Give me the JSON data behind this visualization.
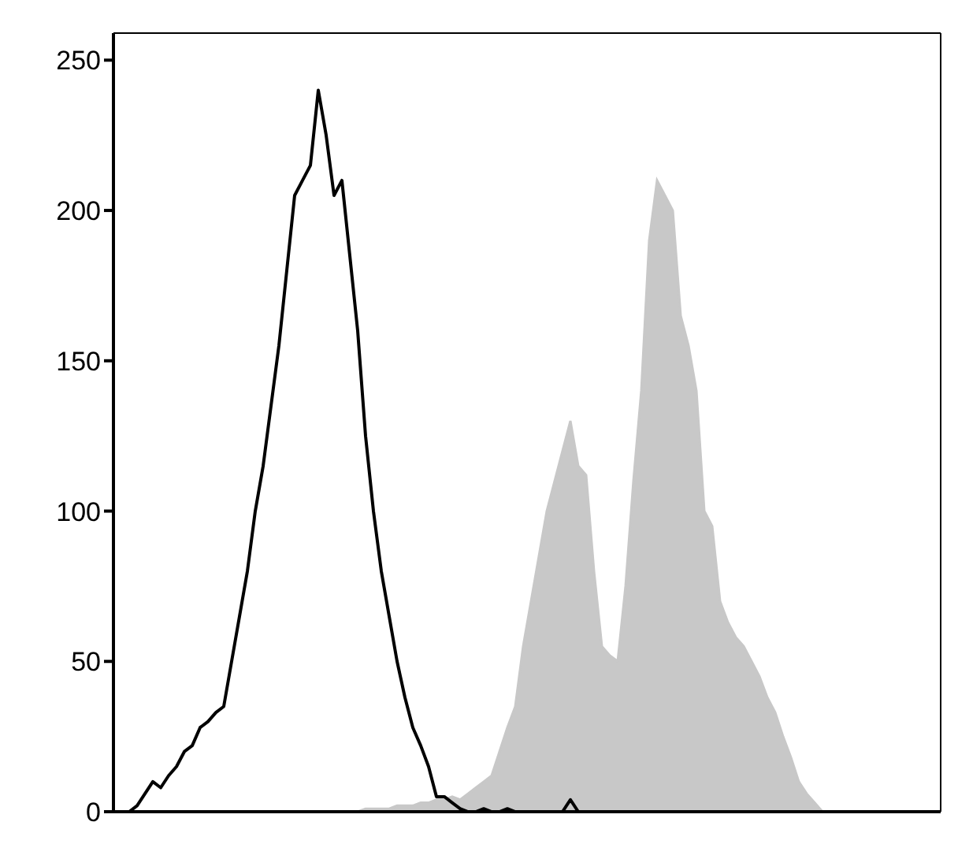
{
  "chart_data": {
    "type": "area",
    "categories": [
      null,
      null,
      null,
      null,
      null,
      null,
      null,
      null,
      null,
      null,
      null,
      null,
      null,
      null,
      null,
      null,
      null,
      null,
      null,
      null,
      null,
      null,
      null,
      null,
      null,
      null,
      null,
      null,
      null,
      null,
      null,
      null,
      null,
      null,
      null,
      null,
      null,
      null,
      null,
      null,
      null,
      null,
      null,
      null,
      null,
      null,
      null,
      null,
      null,
      null,
      null,
      null,
      null,
      null,
      null,
      null,
      null,
      null,
      null,
      null,
      null,
      null,
      null,
      null,
      null,
      null,
      null,
      null,
      null,
      null,
      null,
      null,
      null,
      null,
      null,
      null,
      null,
      null,
      null,
      null,
      null,
      null,
      null,
      null,
      null,
      null,
      null,
      null,
      null,
      null,
      null,
      null,
      null,
      null,
      null,
      null,
      null,
      null,
      null,
      null,
      null,
      null,
      null,
      null,
      null,
      null
    ],
    "series": [
      {
        "color": "#c8c8c8",
        "values": [
          0,
          0,
          0,
          0,
          0,
          0,
          0,
          0,
          0,
          0,
          0,
          0,
          0,
          0,
          0,
          0,
          0,
          0,
          0,
          0,
          0,
          0,
          0,
          0,
          0,
          0,
          0,
          0,
          0,
          0,
          0,
          0,
          1,
          1,
          1,
          1,
          2,
          2,
          2,
          3,
          3,
          4,
          4,
          5,
          4,
          6,
          8,
          10,
          12,
          20,
          28,
          35,
          55,
          70,
          85,
          100,
          110,
          120,
          130,
          115,
          112,
          80,
          55,
          52,
          50,
          75,
          110,
          140,
          190,
          210,
          205,
          200,
          165,
          155,
          140,
          100,
          95,
          70,
          63,
          58,
          55,
          50,
          45,
          38,
          33,
          25,
          18,
          10,
          6,
          3,
          0,
          0,
          0,
          0,
          0,
          0,
          0,
          0,
          0,
          0,
          0,
          0,
          0,
          0,
          0,
          0
        ]
      },
      {
        "type": "line",
        "color": "#000000",
        "values": [
          0,
          0,
          0,
          2,
          6,
          10,
          8,
          12,
          15,
          20,
          22,
          28,
          30,
          33,
          35,
          50,
          65,
          80,
          100,
          115,
          135,
          155,
          180,
          205,
          210,
          215,
          240,
          225,
          205,
          210,
          185,
          160,
          125,
          100,
          80,
          65,
          50,
          38,
          28,
          22,
          15,
          5,
          5,
          3,
          1,
          0,
          0,
          1,
          0,
          0,
          1,
          0,
          0,
          0,
          0,
          0,
          0,
          0,
          4,
          0,
          0,
          0,
          0,
          0,
          0,
          0,
          0,
          0,
          0,
          0,
          0,
          0,
          0,
          0,
          0,
          0,
          0,
          0,
          0,
          0,
          0,
          0,
          0,
          0,
          0,
          0,
          0,
          0,
          0,
          0,
          0,
          0,
          0,
          0,
          0,
          0,
          0,
          0,
          0,
          0,
          0,
          0,
          0,
          0,
          0,
          0
        ]
      }
    ],
    "ylim": [
      0,
      259
    ],
    "yticks": [
      0,
      50,
      100,
      150,
      200,
      250
    ],
    "tick_labels": "y",
    "grid": false,
    "marker": "none"
  }
}
